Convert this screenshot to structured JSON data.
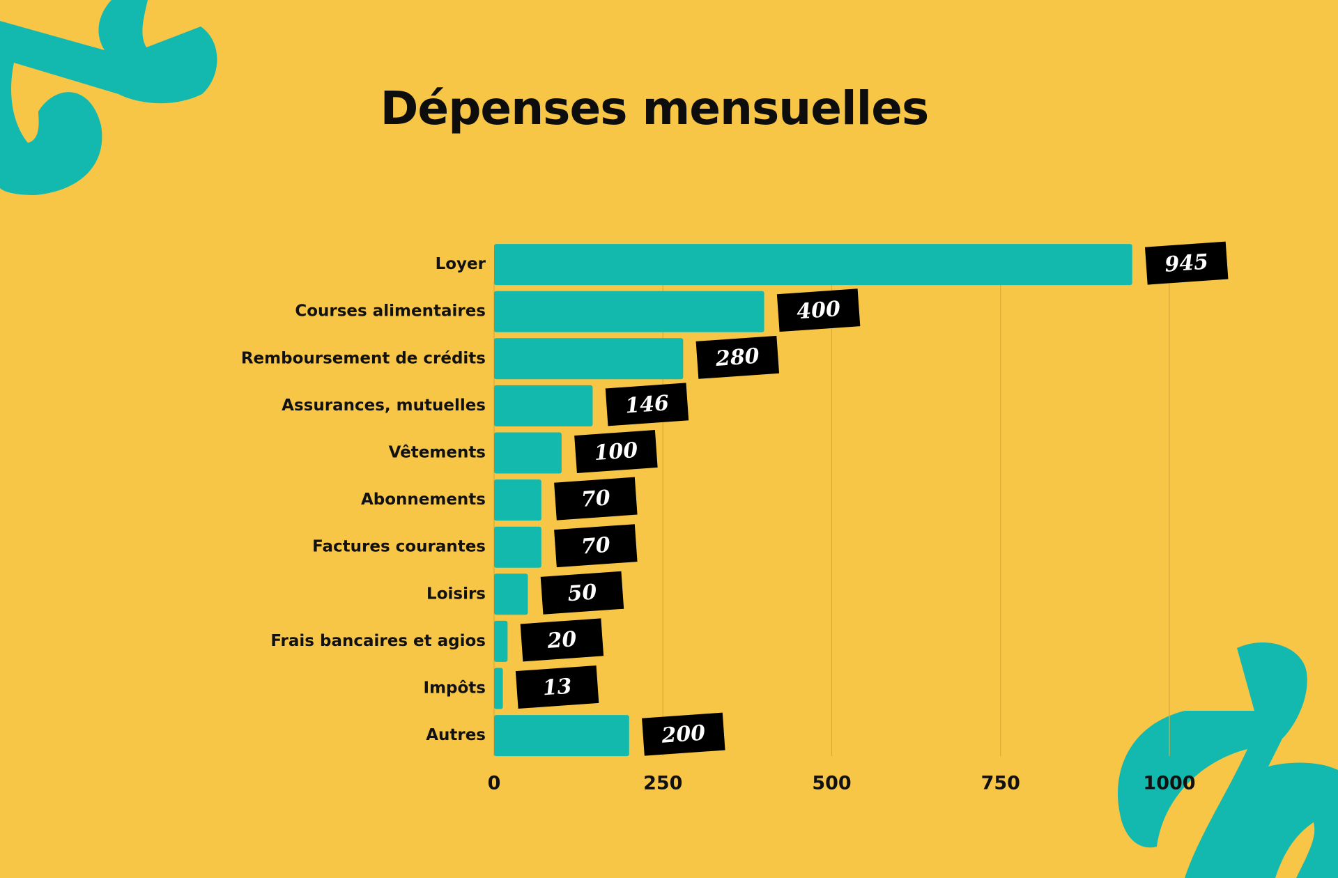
{
  "chart_data": {
    "type": "bar",
    "orientation": "horizontal",
    "title": "Dépenses mensuelles",
    "categories": [
      "Loyer",
      "Courses alimentaires",
      "Remboursement de crédits",
      "Assurances, mutuelles",
      "Vêtements",
      "Abonnements",
      "Factures courantes",
      "Loisirs",
      "Frais bancaires et agios",
      "Impôts",
      "Autres"
    ],
    "values": [
      945,
      400,
      280,
      146,
      100,
      70,
      70,
      50,
      20,
      13,
      200
    ],
    "color": "#14b9ae",
    "xlim": [
      0,
      1000
    ],
    "xticks": [
      0,
      250,
      500,
      750,
      1000
    ],
    "grid": true
  }
}
